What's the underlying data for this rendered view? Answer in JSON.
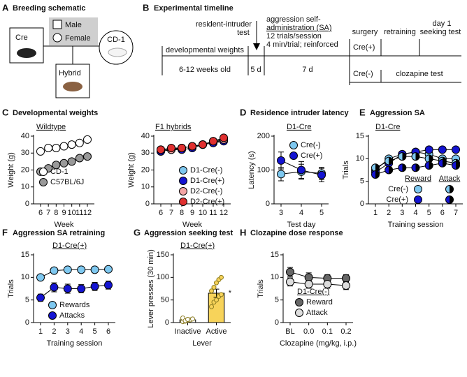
{
  "schematic": {
    "panel_a": {
      "label": "A",
      "title": "Breeding schematic",
      "cre": "Cre",
      "cd1": "CD-1",
      "hybrid": "Hybrid",
      "male": "Male",
      "female": "Female"
    },
    "panel_b": {
      "label": "B",
      "title": "Experimental timeline",
      "resident_intruder": [
        "resident-intruder",
        "test"
      ],
      "sa": [
        "aggression self-",
        "administration (SA)",
        "12 trials/session",
        "4 min/trial; reinforced"
      ],
      "developmental": "developmental weights",
      "age": "6-12 weeks old",
      "d5": "5 d",
      "d7": "7 d",
      "surgery": "surgery",
      "retraining": "retraining",
      "seeking": [
        "day 1",
        "seeking test"
      ],
      "cre_pos": "Cre(+)",
      "cre_neg": "Cre(-)",
      "clozapine": "clozapine test"
    }
  },
  "chart_data": [
    {
      "type": "line",
      "panel": "C",
      "title": "Developmental weights",
      "subtitle": "Wildtype",
      "xlabel": "Week",
      "ylabel": "Weight (g)",
      "categories": [
        6,
        7,
        8,
        9,
        10,
        11,
        12
      ],
      "ylim": [
        0,
        40
      ],
      "yticks": [
        0,
        10,
        20,
        30,
        40
      ],
      "series": [
        {
          "name": "CD-1",
          "color": "#ffffff",
          "values": [
            31,
            33,
            33,
            34,
            35,
            36,
            38
          ]
        },
        {
          "name": "C57BL/6J",
          "color": "#999999",
          "values": [
            19,
            21,
            23,
            24,
            25,
            27,
            28
          ]
        }
      ]
    },
    {
      "type": "line",
      "subtitle": "F1 hybrids",
      "xlabel": "Week",
      "ylabel": "Weight (g)",
      "categories": [
        6,
        7,
        8,
        9,
        10,
        11,
        12
      ],
      "ylim": [
        0,
        40
      ],
      "yticks": [
        0,
        10,
        20,
        30,
        40
      ],
      "series": [
        {
          "name": "D1-Cre(-)",
          "color": "#7ec8f0",
          "values": [
            31,
            32,
            33,
            34,
            35,
            36,
            38
          ]
        },
        {
          "name": "D1-Cre(+)",
          "color": "#1414d2",
          "values": [
            31,
            32,
            32,
            33,
            35,
            36,
            37
          ]
        },
        {
          "name": "D2-Cre(-)",
          "color": "#f4a6a6",
          "values": [
            32,
            32,
            33,
            34,
            35,
            37,
            38
          ]
        },
        {
          "name": "D2-Cre(+)",
          "color": "#e03030",
          "values": [
            32,
            33,
            33,
            34,
            35,
            37,
            39
          ]
        }
      ]
    },
    {
      "type": "line",
      "panel": "D",
      "title": "Residence intruder latency",
      "subtitle": "D1-Cre",
      "xlabel": "Test day",
      "ylabel": "Latency (s)",
      "categories": [
        3,
        4,
        5
      ],
      "ylim": [
        0,
        200
      ],
      "yticks": [
        0,
        100,
        200
      ],
      "series": [
        {
          "name": "Cre(-)",
          "color": "#7ec8f0",
          "values": [
            88,
            95,
            90
          ],
          "errors": [
            20,
            22,
            18
          ]
        },
        {
          "name": "Cre(+)",
          "color": "#1414d2",
          "values": [
            128,
            100,
            85
          ],
          "errors": [
            25,
            25,
            20
          ]
        }
      ]
    },
    {
      "type": "line",
      "panel": "E",
      "title": "Aggression SA",
      "subtitle": "D1-Cre",
      "xlabel": "Training session",
      "ylabel": "Trials",
      "categories": [
        1,
        2,
        3,
        4,
        5,
        6,
        7
      ],
      "ylim": [
        0,
        15
      ],
      "yticks": [
        0,
        5,
        10,
        15
      ],
      "legend_rows": [
        "Cre(-)",
        "Cre(+)"
      ],
      "groups": [
        {
          "name": "Reward",
          "marker": "full",
          "series": [
            {
              "color": "#7ec8f0",
              "values": [
                7.5,
                10,
                11,
                11.5,
                11,
                10,
                10
              ]
            },
            {
              "color": "#1414d2",
              "values": [
                7,
                9,
                11,
                11.5,
                12,
                12,
                12
              ]
            }
          ]
        },
        {
          "name": "Attack",
          "marker": "half",
          "series": [
            {
              "color": "#7ec8f0",
              "values": [
                8,
                9.5,
                10.5,
                10.5,
                10,
                9.5,
                9
              ]
            },
            {
              "color": "#1414d2",
              "values": [
                6.5,
                7.5,
                8,
                8,
                8.5,
                9,
                8.5
              ]
            }
          ]
        }
      ]
    },
    {
      "type": "line",
      "panel": "F",
      "title": "Aggression SA retraining",
      "subtitle": "D1-Cre(+)",
      "xlabel": "Training session",
      "ylabel": "Trials",
      "categories": [
        1,
        2,
        3,
        4,
        5,
        6
      ],
      "ylim": [
        0,
        15
      ],
      "yticks": [
        0,
        5,
        10,
        15
      ],
      "series": [
        {
          "name": "Rewards",
          "color": "#7ec8f0",
          "values": [
            10,
            11.5,
            11.7,
            11.7,
            11.7,
            11.8
          ],
          "errors": [
            0.5,
            0.5,
            0.5,
            0.5,
            0.5,
            0.5
          ]
        },
        {
          "name": "Attacks",
          "color": "#1414d2",
          "values": [
            5.5,
            7.8,
            7.5,
            7.5,
            8,
            8.3
          ],
          "errors": [
            0.8,
            1,
            1,
            0.9,
            0.9,
            0.9
          ]
        }
      ]
    },
    {
      "type": "bar",
      "panel": "G",
      "title": "Aggression seeking test",
      "subtitle": "D1-Cre(+)",
      "xlabel": "Lever",
      "ylabel": "Lever presses (30 min)",
      "categories": [
        "Inactive",
        "Active"
      ],
      "values": [
        6,
        65
      ],
      "errors": [
        2,
        9
      ],
      "colors": [
        "#ffffff",
        "#f7d35a"
      ],
      "points": [
        [
          2,
          3,
          5,
          6,
          8,
          10,
          4,
          7
        ],
        [
          35,
          45,
          50,
          58,
          62,
          70,
          78,
          88,
          95,
          100
        ]
      ],
      "ylim": [
        0,
        150
      ],
      "yticks": [
        0,
        50,
        100,
        150
      ],
      "annotation": "*"
    },
    {
      "type": "line",
      "panel": "H",
      "title": "Clozapine dose response",
      "legend_title": "D1-Cre(-)",
      "xlabel": "Clozapine (mg/kg, i.p.)",
      "ylabel": "Trials",
      "categories": [
        "BL",
        "0.0",
        "0.1",
        "0.2"
      ],
      "ylim": [
        0,
        15
      ],
      "yticks": [
        0,
        5,
        10,
        15
      ],
      "series": [
        {
          "name": "Reward",
          "color": "#666666",
          "values": [
            11.2,
            10,
            9.8,
            9.8
          ],
          "errors": [
            1,
            1,
            0.8,
            0.8
          ]
        },
        {
          "name": "Attack",
          "color": "#dddddd",
          "values": [
            9,
            8.5,
            8.5,
            8.2
          ],
          "errors": [
            0.9,
            0.9,
            0.9,
            0.9
          ]
        }
      ]
    }
  ]
}
